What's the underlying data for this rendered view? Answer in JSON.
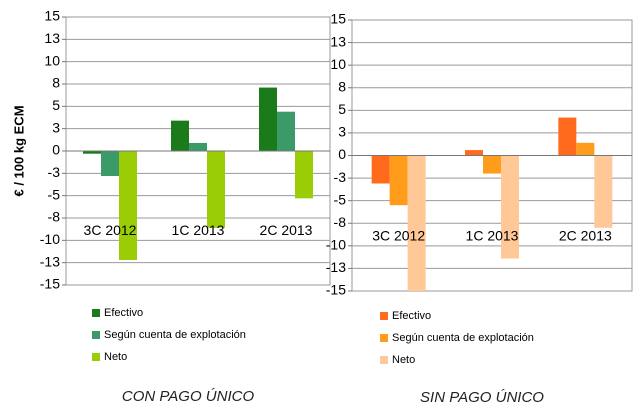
{
  "chart_data": [
    {
      "type": "bar",
      "y_axis_label": "€ / 100 kg ECM",
      "caption": "CON PAGO ÚNICO",
      "categories": [
        "3C 2012",
        "1C 2013",
        "2C 2013"
      ],
      "series": [
        {
          "name": "Efectivo",
          "color": "#1b7b1b",
          "values": [
            -0.3,
            3.4,
            7.1
          ]
        },
        {
          "name": "Según cuenta de explotación",
          "color": "#3a9a68",
          "values": [
            -2.8,
            0.9,
            4.4
          ]
        },
        {
          "name": "Neto",
          "color": "#9acd06",
          "values": [
            -12.2,
            -8.6,
            -5.3
          ]
        }
      ],
      "ylim": [
        -15,
        15
      ],
      "yticks": [
        -15,
        {
          "value": -12.5,
          "label": "-13"
        },
        -10,
        {
          "value": -7.5,
          "label": "-8"
        },
        -5,
        {
          "value": -2.5,
          "label": "-3"
        },
        0,
        {
          "value": 2.5,
          "label": "3"
        },
        5,
        {
          "value": 7.5,
          "label": "8"
        },
        10,
        {
          "value": 12.5,
          "label": "13"
        },
        15
      ],
      "grid": true
    },
    {
      "type": "bar",
      "caption": "SIN PAGO ÚNICO",
      "categories": [
        "3C 2012",
        "1C 2013",
        "2C 2013"
      ],
      "series": [
        {
          "name": "Efectivo",
          "color": "#ff6a1c",
          "values": [
            -3.1,
            0.6,
            4.2
          ]
        },
        {
          "name": "Según cuenta de explotación",
          "color": "#ff9c1c",
          "values": [
            -5.5,
            -2.0,
            1.4
          ]
        },
        {
          "name": "Neto",
          "color": "#ffc896",
          "values": [
            -15,
            -11.4,
            -8.0
          ]
        }
      ],
      "ylim": [
        -15,
        15
      ],
      "yticks": [
        -15,
        {
          "value": -12.5,
          "label": "-13"
        },
        -10,
        {
          "value": -7.5,
          "label": "-8"
        },
        -5,
        {
          "value": -2.5,
          "label": "-3"
        },
        0,
        {
          "value": 2.5,
          "label": "3"
        },
        5,
        {
          "value": 7.5,
          "label": "8"
        },
        10,
        {
          "value": 12.5,
          "label": "13"
        },
        15
      ],
      "grid": true
    }
  ]
}
